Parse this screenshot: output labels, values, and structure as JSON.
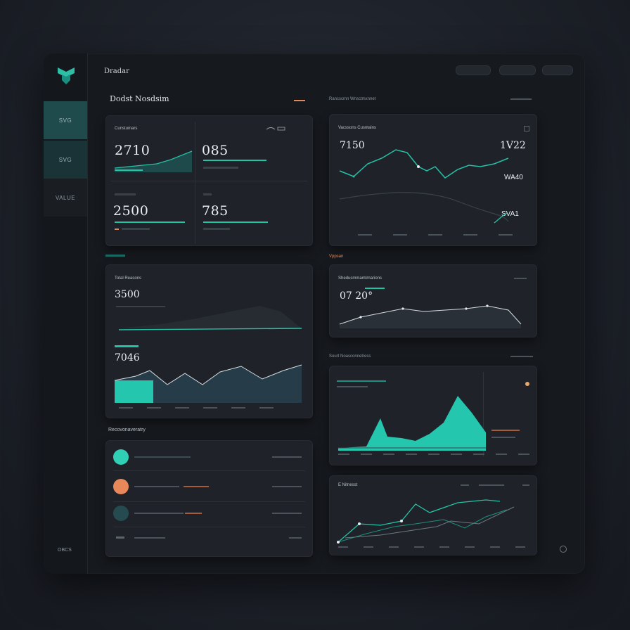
{
  "app": {
    "title": "Dradar",
    "logo": "g-logo-icon"
  },
  "header": {
    "pills": [
      "",
      "",
      ""
    ]
  },
  "sidebar": {
    "items": [
      {
        "label": "SVG"
      },
      {
        "label": "SVG"
      },
      {
        "label": "VALUE"
      }
    ],
    "footer": "OBCS"
  },
  "left": {
    "title": "Dodst Nosdsim",
    "title_tag": "",
    "kpi": {
      "header": "Cunstumars",
      "blocks": [
        {
          "value": "2710",
          "label": ""
        },
        {
          "value": "085",
          "label": ""
        },
        {
          "value": "2500",
          "label": ""
        },
        {
          "value": "785",
          "label": ""
        }
      ]
    },
    "trend_card": {
      "title": "Total Reasons",
      "value1": "3500",
      "value2": "7046"
    },
    "activity": {
      "title": "Recovonaveratry",
      "rows": [
        {
          "text": "",
          "right": "",
          "color": "#2fd0b4"
        },
        {
          "text": "",
          "right": "",
          "color": "#e8885a"
        },
        {
          "text": "",
          "right": "",
          "color": "#254b50"
        },
        {
          "text": "",
          "right": "",
          "color": "#2a2f36"
        }
      ]
    }
  },
  "right": {
    "line_card": {
      "section": "Rancscmn Wnsctmxnnet",
      "title": "Vacssons Cusntains",
      "left_value": "7150",
      "right_value1": "1V22",
      "right_value2": "WA40",
      "right_value3": "SVA1"
    },
    "small_card": {
      "section": "Vppsan",
      "title": "Shedusmmamtrnarions",
      "value": "07 20°"
    },
    "area_card": {
      "section": "Sourt Noasconnetress",
      "right_tag": ""
    },
    "multi_line": {
      "title": "E Nitnesst"
    }
  },
  "colors": {
    "accent": "#24c2a7",
    "orange": "#e08a5b",
    "card": "#1f2329"
  }
}
